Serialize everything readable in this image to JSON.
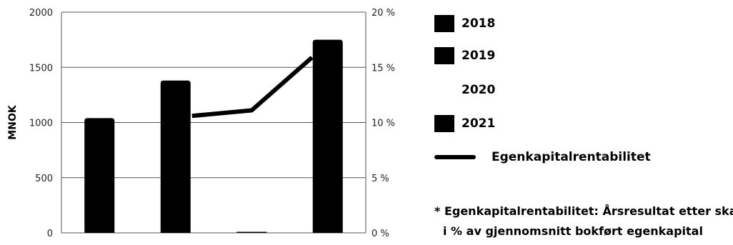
{
  "chart_data": {
    "type": "bar",
    "categories": [
      "2018",
      "2019",
      "2020",
      "2021"
    ],
    "series": [
      {
        "name": "",
        "type": "bar",
        "axis": "left",
        "values": [
          1040,
          1380,
          0,
          1750
        ]
      },
      {
        "name": "Egenkapitalrentabilitet",
        "type": "line",
        "axis": "right",
        "values": [
          null,
          10.6,
          11.1,
          15.9
        ]
      }
    ],
    "ylabel": "MNOK",
    "ylim": [
      0,
      2000
    ],
    "yticks": [
      "0",
      "500",
      "1000",
      "1500",
      "2000"
    ],
    "y2lim": [
      0,
      20
    ],
    "y2ticks": [
      "0 %",
      "5 %",
      "10 %",
      "15 %",
      "20 %"
    ],
    "grid": true,
    "legend_position": "right"
  },
  "legend": {
    "items": [
      {
        "label": "2018",
        "swatch": "#000000"
      },
      {
        "label": "2019",
        "swatch": "#000000"
      },
      {
        "label": "2020",
        "swatch": "none"
      },
      {
        "label": "2021",
        "swatch": "#000000"
      }
    ],
    "line_label": "Egenkapitalrentabilitet"
  },
  "footnote": {
    "line1": "* Egenkapitalrentabilitet: Årsresultat etter skatt",
    "line2": "i % av gjennomsnitt bokført egenkapital"
  }
}
